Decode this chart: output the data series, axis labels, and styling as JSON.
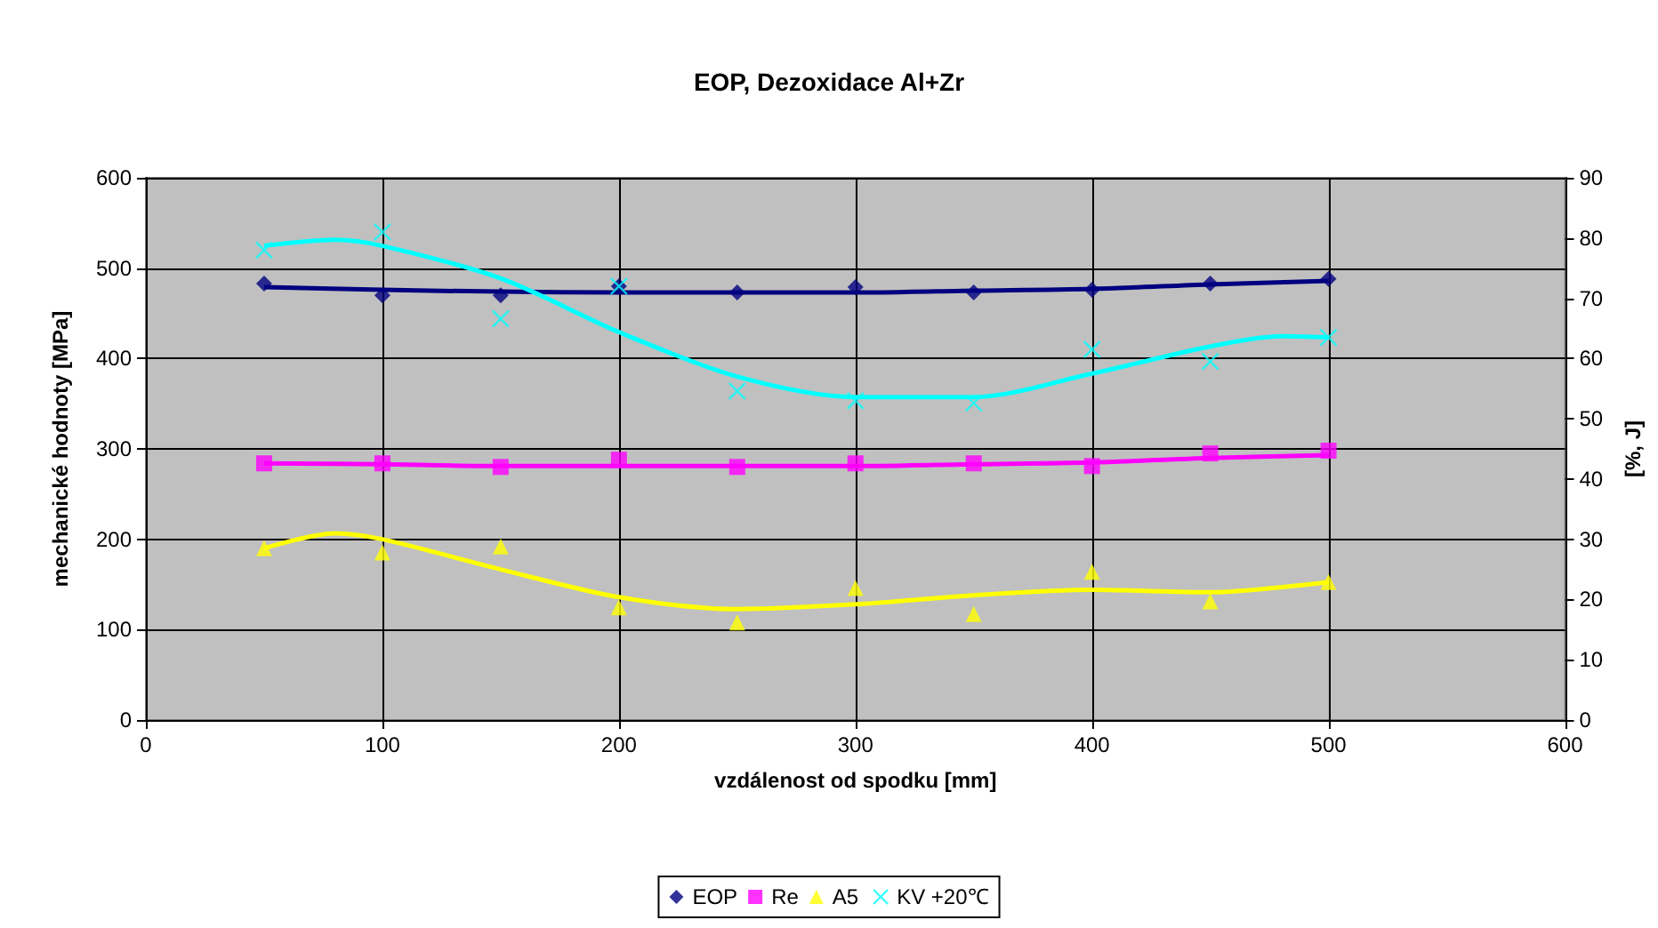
{
  "chart_data": {
    "type": "scatter",
    "title": "EOP, Dezoxidace Al+Zr",
    "xlabel": "vzdálenost od spodku [mm]",
    "ylabel": "mechanické hodnoty [MPa]",
    "y2label": "[%, J]",
    "x": [
      50,
      100,
      150,
      200,
      250,
      300,
      350,
      400,
      450,
      500
    ],
    "series": [
      {
        "name": "EOP",
        "color": "#000080",
        "marker": "diamond",
        "values": [
          483,
          470,
          470,
          480,
          473,
          479,
          473,
          476,
          483,
          488
        ]
      },
      {
        "name": "Re",
        "color": "#ff00ff",
        "marker": "square",
        "values": [
          284,
          284,
          280,
          288,
          280,
          284,
          284,
          281,
          295,
          298
        ]
      },
      {
        "name": "A5",
        "color": "#ffff00",
        "marker": "triangle",
        "axis": "y2",
        "values": [
          28.5,
          27.8,
          28.8,
          18.7,
          16.2,
          21.9,
          17.6,
          24.6,
          19.7,
          22.9
        ]
      },
      {
        "name": "KV +20℃",
        "color": "#00ffff",
        "marker": "cross",
        "axis": "y2",
        "values": [
          78,
          81,
          66.6,
          72,
          54.6,
          53,
          52.6,
          61.5,
          59.5,
          63.5
        ]
      },
      {
        "type": "line",
        "color": "#000080",
        "marker": "none",
        "x": [
          50,
          100,
          150,
          200,
          250,
          300,
          350,
          400,
          450,
          500
        ],
        "values": [
          479,
          476,
          474,
          473,
          473,
          473,
          475,
          477,
          482,
          486
        ]
      },
      {
        "type": "line",
        "color": "#ff00ff",
        "marker": "none",
        "x": [
          50,
          100,
          150,
          200,
          250,
          300,
          350,
          400,
          450,
          500
        ],
        "values": [
          284,
          283,
          281,
          281,
          281,
          281,
          283,
          285,
          290,
          293
        ]
      },
      {
        "type": "line",
        "color": "#ffff00",
        "marker": "none",
        "axis": "y2",
        "x": [
          50,
          80,
          100,
          150,
          200,
          250,
          300,
          350,
          400,
          450,
          500
        ],
        "values": [
          28.5,
          31,
          30,
          25,
          20.4,
          18.4,
          19.2,
          20.7,
          21.6,
          21.2,
          22.9
        ]
      },
      {
        "type": "line",
        "color": "#00ffff",
        "marker": "none",
        "axis": "y2",
        "x": [
          50,
          80,
          100,
          150,
          200,
          250,
          300,
          350,
          400,
          450,
          480,
          500
        ],
        "values": [
          78.7,
          79.7,
          78.7,
          73.3,
          64.4,
          57,
          53.6,
          53.6,
          57.5,
          62,
          63.7,
          63.5
        ]
      }
    ],
    "xlim": [
      0,
      600
    ],
    "xticks": [
      0,
      100,
      200,
      300,
      400,
      500,
      600
    ],
    "ylim": [
      0,
      600
    ],
    "yticks": [
      0,
      100,
      200,
      300,
      400,
      500,
      600
    ],
    "y2lim": [
      0,
      90
    ],
    "y2ticks": [
      0,
      10,
      20,
      30,
      40,
      50,
      60,
      70,
      80,
      90
    ],
    "grid": true,
    "legend": "bottom"
  }
}
